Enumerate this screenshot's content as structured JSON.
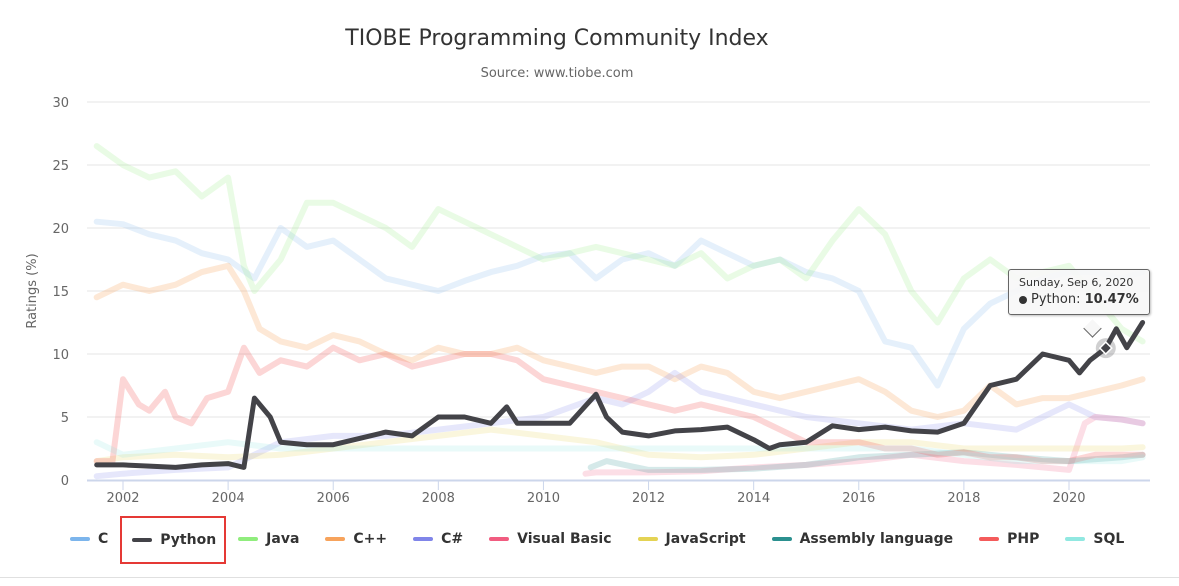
{
  "title": "TIOBE Programming Community Index",
  "subtitle": "Source: www.tiobe.com",
  "tooltip": {
    "date": "Sunday, Sep 6, 2020",
    "series": "Python",
    "separator": ": ",
    "value": "10.47%"
  },
  "chart_data": {
    "type": "line",
    "title": "TIOBE Programming Community Index",
    "subtitle": "Source: www.tiobe.com",
    "xlabel": "",
    "ylabel": "Ratings (%)",
    "ylim": [
      0,
      30
    ],
    "xlim": [
      2001.5,
      2021.4
    ],
    "yticks": [
      0,
      5,
      10,
      15,
      20,
      25,
      30
    ],
    "xticks": [
      2002,
      2004,
      2006,
      2008,
      2010,
      2012,
      2014,
      2016,
      2018,
      2020
    ],
    "grid": true,
    "legend_position": "bottom",
    "highlighted_series": "Python",
    "series": [
      {
        "name": "C",
        "color": "#7cb5ec",
        "opacity": 0.2,
        "x": [
          2001.5,
          2002,
          2002.5,
          2003,
          2003.5,
          2004,
          2004.5,
          2005,
          2005.5,
          2006,
          2006.5,
          2007,
          2007.5,
          2008,
          2008.5,
          2009,
          2009.5,
          2010,
          2010.5,
          2011,
          2011.5,
          2012,
          2012.5,
          2013,
          2013.5,
          2014,
          2014.5,
          2015,
          2015.5,
          2016,
          2016.5,
          2017,
          2017.5,
          2018,
          2018.5,
          2019,
          2019.5,
          2020,
          2020.5,
          2021,
          2021.4
        ],
        "y": [
          20.5,
          20.3,
          19.5,
          19.0,
          18.0,
          17.5,
          16.0,
          20.0,
          18.5,
          19.0,
          17.5,
          16.0,
          15.5,
          15.0,
          15.8,
          16.5,
          17.0,
          17.8,
          18.0,
          16.0,
          17.5,
          18.0,
          17.0,
          19.0,
          18.0,
          17.0,
          17.5,
          16.5,
          16.0,
          15.0,
          11.0,
          10.5,
          7.5,
          12.0,
          14.0,
          15.0,
          16.0,
          16.5,
          16.5,
          16.0,
          16.5
        ]
      },
      {
        "name": "Python",
        "color": "#434348",
        "opacity": 1,
        "x": [
          2001.5,
          2002,
          2002.5,
          2003,
          2003.5,
          2004,
          2004.3,
          2004.5,
          2004.8,
          2005,
          2005.5,
          2006,
          2006.5,
          2007,
          2007.5,
          2008,
          2008.5,
          2009,
          2009.3,
          2009.5,
          2010,
          2010.5,
          2011,
          2011.2,
          2011.5,
          2012,
          2012.5,
          2013,
          2013.5,
          2014,
          2014.3,
          2014.5,
          2015,
          2015.5,
          2016,
          2016.5,
          2017,
          2017.5,
          2018,
          2018.5,
          2019,
          2019.5,
          2020,
          2020.2,
          2020.4,
          2020.7,
          2020.9,
          2021.1,
          2021.4
        ],
        "y": [
          1.2,
          1.2,
          1.1,
          1.0,
          1.2,
          1.3,
          1.0,
          6.5,
          5.0,
          3.0,
          2.8,
          2.8,
          3.3,
          3.8,
          3.5,
          5.0,
          5.0,
          4.5,
          5.8,
          4.5,
          4.5,
          4.5,
          6.8,
          5.0,
          3.8,
          3.5,
          3.9,
          4.0,
          4.2,
          3.2,
          2.5,
          2.8,
          3.0,
          4.3,
          4.0,
          4.2,
          3.9,
          3.8,
          4.5,
          7.5,
          8.0,
          10.0,
          9.5,
          8.5,
          9.5,
          10.47,
          12.0,
          10.5,
          12.5
        ]
      },
      {
        "name": "Java",
        "color": "#90ed7d",
        "opacity": 0.2,
        "x": [
          2001.5,
          2002,
          2002.5,
          2003,
          2003.5,
          2004,
          2004.3,
          2004.5,
          2005,
          2005.5,
          2006,
          2006.5,
          2007,
          2007.5,
          2008,
          2008.5,
          2009,
          2009.5,
          2010,
          2010.5,
          2011,
          2011.5,
          2012,
          2012.5,
          2013,
          2013.5,
          2014,
          2014.5,
          2015,
          2015.5,
          2016,
          2016.5,
          2017,
          2017.5,
          2018,
          2018.5,
          2019,
          2019.5,
          2020,
          2020.5,
          2021,
          2021.4
        ],
        "y": [
          26.5,
          25.0,
          24.0,
          24.5,
          22.5,
          24.0,
          17.0,
          15.0,
          17.5,
          22.0,
          22.0,
          21.0,
          20.0,
          18.5,
          21.5,
          20.5,
          19.5,
          18.5,
          17.5,
          18.0,
          18.5,
          18.0,
          17.5,
          17.0,
          18.0,
          16.0,
          17.0,
          17.5,
          16.0,
          19.0,
          21.5,
          19.5,
          15.0,
          12.5,
          16.0,
          17.5,
          16.0,
          16.5,
          17.0,
          14.5,
          12.0,
          11.0
        ]
      },
      {
        "name": "C++",
        "color": "#f7a35c",
        "opacity": 0.25,
        "x": [
          2001.5,
          2002,
          2002.5,
          2003,
          2003.5,
          2004,
          2004.3,
          2004.6,
          2005,
          2005.5,
          2006,
          2006.5,
          2007,
          2007.5,
          2008,
          2008.5,
          2009,
          2009.5,
          2010,
          2010.5,
          2011,
          2011.5,
          2012,
          2012.5,
          2013,
          2013.5,
          2014,
          2014.5,
          2015,
          2015.5,
          2016,
          2016.5,
          2017,
          2017.5,
          2018,
          2018.5,
          2019,
          2019.5,
          2020,
          2020.5,
          2021,
          2021.4
        ],
        "y": [
          14.5,
          15.5,
          15.0,
          15.5,
          16.5,
          17.0,
          15.0,
          12.0,
          11.0,
          10.5,
          11.5,
          11.0,
          10.0,
          9.5,
          10.5,
          10.0,
          10.0,
          10.5,
          9.5,
          9.0,
          8.5,
          9.0,
          9.0,
          8.0,
          9.0,
          8.5,
          7.0,
          6.5,
          7.0,
          7.5,
          8.0,
          7.0,
          5.5,
          5.0,
          5.5,
          7.5,
          6.0,
          6.5,
          6.5,
          7.0,
          7.5,
          8.0
        ]
      },
      {
        "name": "C#",
        "color": "#8085e9",
        "opacity": 0.2,
        "x": [
          2001.5,
          2002,
          2003,
          2004,
          2005,
          2006,
          2007,
          2008,
          2009,
          2010,
          2011,
          2011.5,
          2012,
          2012.5,
          2013,
          2014,
          2015,
          2016,
          2017,
          2018,
          2019,
          2019.5,
          2020,
          2020.5,
          2021,
          2021.4
        ],
        "y": [
          0.3,
          0.5,
          0.8,
          1.0,
          3.0,
          3.5,
          3.5,
          4.0,
          4.5,
          5.0,
          6.5,
          6.0,
          7.0,
          8.5,
          7.0,
          6.0,
          5.0,
          4.5,
          4.0,
          4.5,
          4.0,
          5.0,
          6.0,
          5.0,
          4.8,
          4.5
        ]
      },
      {
        "name": "Visual Basic",
        "color": "#f15c80",
        "opacity": 0.2,
        "x": [
          2010.8,
          2011,
          2012,
          2013,
          2014,
          2015,
          2016,
          2017,
          2018,
          2019,
          2019.5,
          2020,
          2020.3,
          2020.5,
          2021,
          2021.4
        ],
        "y": [
          0.5,
          0.6,
          0.6,
          0.7,
          1.0,
          1.2,
          1.5,
          2.0,
          1.5,
          1.2,
          1.0,
          0.8,
          4.5,
          5.0,
          4.8,
          4.5
        ]
      },
      {
        "name": "JavaScript",
        "color": "#e4d354",
        "opacity": 0.2,
        "x": [
          2001.5,
          2002,
          2003,
          2004,
          2005,
          2006,
          2007,
          2008,
          2009,
          2010,
          2011,
          2011.5,
          2012,
          2013,
          2014,
          2015,
          2016,
          2017,
          2018,
          2019,
          2020,
          2021,
          2021.4
        ],
        "y": [
          1.5,
          1.8,
          2.0,
          1.8,
          2.0,
          2.5,
          3.0,
          3.5,
          4.0,
          3.5,
          3.0,
          2.5,
          2.0,
          1.8,
          2.0,
          2.5,
          3.0,
          3.0,
          2.5,
          2.5,
          2.5,
          2.5,
          2.6
        ]
      },
      {
        "name": "Assembly language",
        "color": "#2b908f",
        "opacity": 0.2,
        "x": [
          2010.9,
          2011.2,
          2012,
          2013,
          2014,
          2015,
          2016,
          2017,
          2018,
          2019,
          2020,
          2021,
          2021.4
        ],
        "y": [
          1.0,
          1.5,
          0.8,
          0.8,
          0.9,
          1.2,
          1.8,
          2.0,
          2.2,
          1.8,
          1.5,
          1.8,
          2.0
        ]
      },
      {
        "name": "PHP",
        "color": "#f45b5b",
        "opacity": 0.25,
        "x": [
          2001.5,
          2001.8,
          2002,
          2002.3,
          2002.5,
          2002.8,
          2003,
          2003.3,
          2003.6,
          2004,
          2004.3,
          2004.6,
          2005,
          2005.5,
          2006,
          2006.5,
          2007,
          2007.5,
          2008,
          2008.5,
          2009,
          2009.5,
          2010,
          2010.5,
          2011,
          2011.5,
          2012,
          2012.5,
          2013,
          2013.5,
          2014,
          2014.5,
          2015,
          2015.5,
          2016,
          2016.5,
          2017,
          2017.5,
          2018,
          2018.5,
          2019,
          2019.5,
          2020,
          2020.5,
          2021,
          2021.4
        ],
        "y": [
          1.5,
          1.5,
          8.0,
          6.0,
          5.5,
          7.0,
          5.0,
          4.5,
          6.5,
          7.0,
          10.5,
          8.5,
          9.5,
          9.0,
          10.5,
          9.5,
          10.0,
          9.0,
          9.5,
          10.0,
          10.0,
          9.5,
          8.0,
          7.5,
          7.0,
          6.5,
          6.0,
          5.5,
          6.0,
          5.5,
          5.0,
          4.0,
          3.0,
          3.0,
          3.0,
          2.5,
          2.5,
          2.0,
          2.2,
          1.8,
          1.8,
          1.5,
          1.5,
          2.0,
          2.0,
          2.0
        ]
      },
      {
        "name": "SQL",
        "color": "#91e8e1",
        "opacity": 0.2,
        "x": [
          2001.5,
          2002,
          2003,
          2004,
          2005,
          2006,
          2007,
          2008,
          2009,
          2010,
          2011,
          2012,
          2013,
          2014,
          2015,
          2016,
          2017,
          2018,
          2019,
          2020,
          2021,
          2021.4
        ],
        "y": [
          3.0,
          2.0,
          2.5,
          3.0,
          2.5,
          2.5,
          2.5,
          2.5,
          2.5,
          2.5,
          2.5,
          2.5,
          2.5,
          2.5,
          2.5,
          2.5,
          2.5,
          2.0,
          1.5,
          1.5,
          1.5,
          1.8
        ]
      }
    ]
  },
  "legend": [
    {
      "name": "C",
      "color": "#7cb5ec"
    },
    {
      "name": "Python",
      "color": "#434348"
    },
    {
      "name": "Java",
      "color": "#90ed7d"
    },
    {
      "name": "C++",
      "color": "#f7a35c"
    },
    {
      "name": "C#",
      "color": "#8085e9"
    },
    {
      "name": "Visual Basic",
      "color": "#f15c80"
    },
    {
      "name": "JavaScript",
      "color": "#e4d354"
    },
    {
      "name": "Assembly language",
      "color": "#2b908f"
    },
    {
      "name": "PHP",
      "color": "#f45b5b"
    },
    {
      "name": "SQL",
      "color": "#91e8e1"
    }
  ]
}
